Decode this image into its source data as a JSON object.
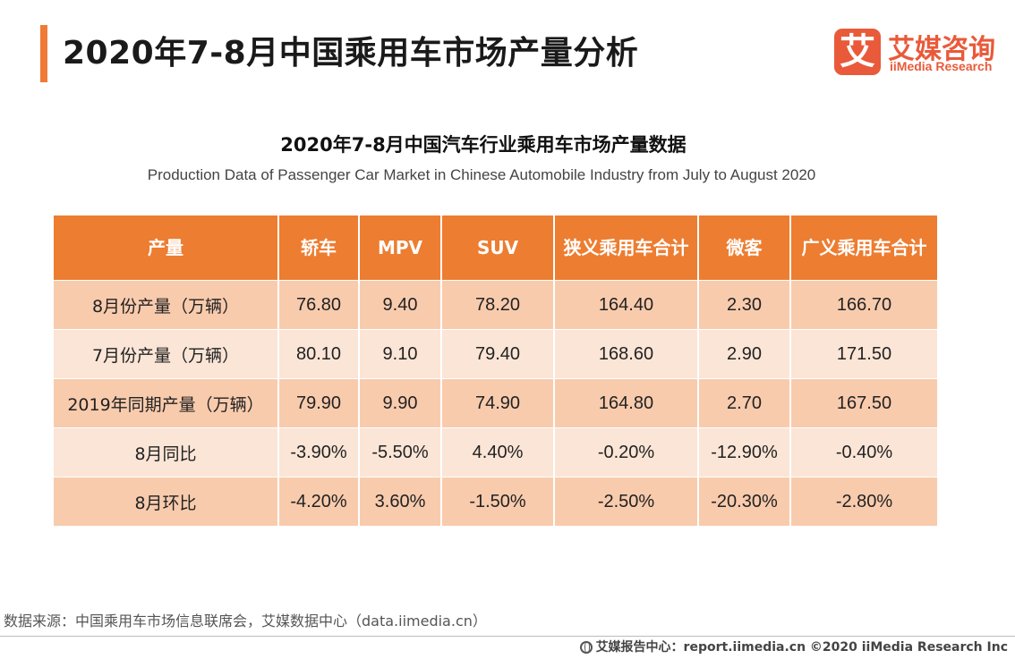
{
  "header": {
    "title": "2020年7-8月中国乘用车市场产量分析",
    "logo": {
      "mark": "艾",
      "name_cn": "艾媒咨询",
      "name_en": "iiMedia Research"
    }
  },
  "table": {
    "title": "2020年7-8月中国汽车行业乘用车市场产量数据",
    "subtitle": "Production Data of Passenger Car Market in Chinese Automobile Industry from July to August 2020",
    "headers": [
      "产量",
      "轿车",
      "MPV",
      "SUV",
      "狭义乘用车合计",
      "微客",
      "广义乘用车合计"
    ],
    "rows": [
      [
        "8月份产量（万辆）",
        "76.80",
        "9.40",
        "78.20",
        "164.40",
        "2.30",
        "166.70"
      ],
      [
        "7月份产量（万辆）",
        "80.10",
        "9.10",
        "79.40",
        "168.60",
        "2.90",
        "171.50"
      ],
      [
        "2019年同期产量（万辆）",
        "79.90",
        "9.90",
        "74.90",
        "164.80",
        "2.70",
        "167.50"
      ],
      [
        "8月同比",
        "-3.90%",
        "-5.50%",
        "4.40%",
        "-0.20%",
        "-12.90%",
        "-0.40%"
      ],
      [
        "8月环比",
        "-4.20%",
        "3.60%",
        "-1.50%",
        "-2.50%",
        "-20.30%",
        "-2.80%"
      ]
    ]
  },
  "source": "数据来源：中国乘用车市场信息联席会，艾媒数据中心（data.iimedia.cn）",
  "footer": {
    "icon": "globe-icon",
    "text": "艾媒报告中心：report.iimedia.cn ©2020 iiMedia Research Inc"
  },
  "colors": {
    "accent": "#ed7d31",
    "row_dark": "#f8cbad",
    "row_light": "#fbe5d6",
    "logo": "#e95a3a"
  }
}
